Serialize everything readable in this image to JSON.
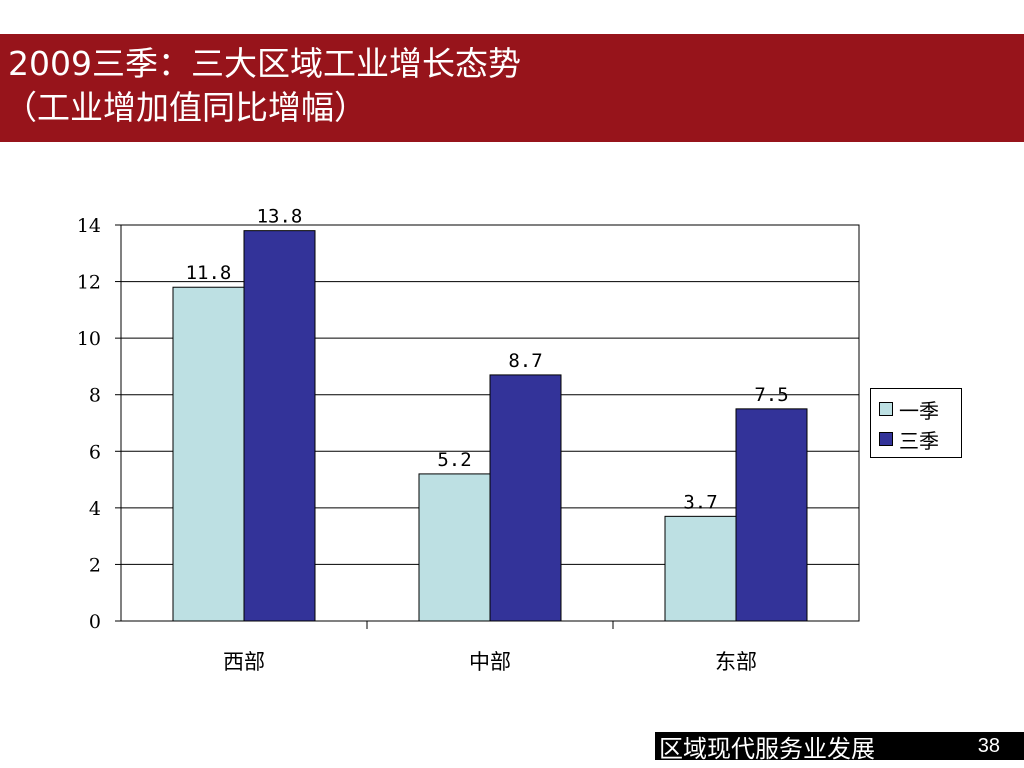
{
  "slide": {
    "title_line1": "2009三季：三大区域工业增长态势",
    "title_line2": "（工业增加值同比增幅）",
    "footer_title": "区域现代服务业发展",
    "page_number": "38"
  },
  "chart_data": {
    "type": "bar",
    "categories": [
      "西部",
      "中部",
      "东部"
    ],
    "series": [
      {
        "name": "一季",
        "values": [
          11.8,
          5.2,
          3.7
        ],
        "labels": [
          "11.8",
          "5.2",
          "3.7"
        ],
        "color": "#bde0e3"
      },
      {
        "name": "三季",
        "values": [
          13.8,
          8.7,
          7.5
        ],
        "labels": [
          "13.8",
          "8.7",
          "7.5"
        ],
        "color": "#333399"
      }
    ],
    "ylim": [
      0,
      14
    ],
    "yticks": [
      0,
      2,
      4,
      6,
      8,
      10,
      12,
      14
    ],
    "grid": true,
    "legend": "right"
  }
}
